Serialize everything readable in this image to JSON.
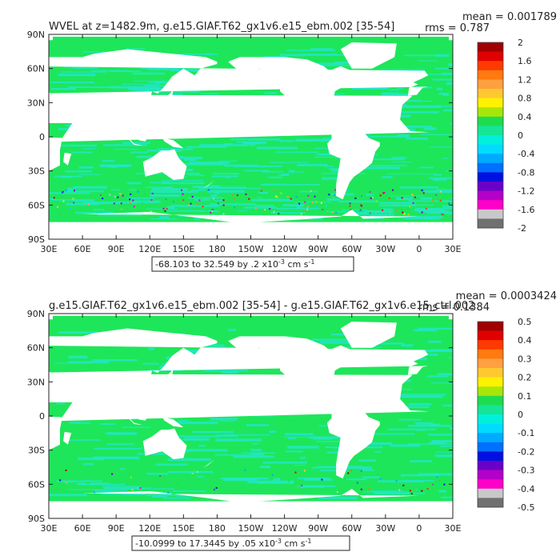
{
  "panels": [
    {
      "title": "WVEL at z=1482.9m, g.e15.GIAF.T62_gx1v6.e15_ebm.002 [35-54]",
      "mean_text": "mean = 0.001789",
      "rms_text": "rms = 0.787",
      "range_text": "-68.103 to 32.549 by .2 x10",
      "range_exp": "-3",
      "range_units": " cm s",
      "range_units_exp": "-1",
      "colorbar_labels": [
        "2",
        "1.6",
        "1.2",
        "0.8",
        "0.4",
        "0",
        "-0.4",
        "-0.8",
        "-1.2",
        "-1.6",
        "-2"
      ],
      "colorbar_colors": [
        "#a00000",
        "#e00000",
        "#ff3a00",
        "#ff7a10",
        "#ffa040",
        "#ffc830",
        "#fff200",
        "#a8e60a",
        "#1edc50",
        "#14e696",
        "#00f0dc",
        "#00dcff",
        "#00aaff",
        "#0070ff",
        "#0010e0",
        "#6a00c8",
        "#b400c8",
        "#ff00c8",
        "#c8c8c8",
        "#707070"
      ]
    },
    {
      "title": "g.e15.GIAF.T62_gx1v6.e15_ebm.002 [35-54] - g.e15.GIAF.T62_gx1v6.e15_ctrl.002",
      "mean_text": "mean = 0.0003424",
      "rms_text": "rms = 0.1384",
      "range_text": "-10.0999 to 17.3445 by .05 x10",
      "range_exp": "-3",
      "range_units": " cm s",
      "range_units_exp": "-1",
      "colorbar_labels": [
        "0.5",
        "0.4",
        "0.3",
        "0.2",
        "0.1",
        "0",
        "-0.1",
        "-0.2",
        "-0.3",
        "-0.4",
        "-0.5"
      ],
      "colorbar_colors": [
        "#a00000",
        "#e00000",
        "#ff3a00",
        "#ff7a10",
        "#ffa040",
        "#ffc830",
        "#fff200",
        "#a8e60a",
        "#1edc50",
        "#14e696",
        "#00f0dc",
        "#00dcff",
        "#00aaff",
        "#0070ff",
        "#0010e0",
        "#6a00c8",
        "#b400c8",
        "#ff00c8",
        "#c8c8c8",
        "#707070"
      ]
    }
  ],
  "axes": {
    "y_ticks": [
      "90N",
      "60N",
      "30N",
      "0",
      "30S",
      "60S",
      "90S"
    ],
    "x_ticks": [
      "30E",
      "60E",
      "90E",
      "120E",
      "150E",
      "180",
      "150W",
      "120W",
      "90W",
      "60W",
      "30W",
      "0",
      "30E"
    ]
  },
  "colors": {
    "ocean_main_top": "#1ee65a",
    "ocean_alt_top": "#22e6c8",
    "ocean_main_bottom": "#1ee65a",
    "ocean_alt_bottom": "#22e6c8",
    "land": "#ffffff"
  }
}
